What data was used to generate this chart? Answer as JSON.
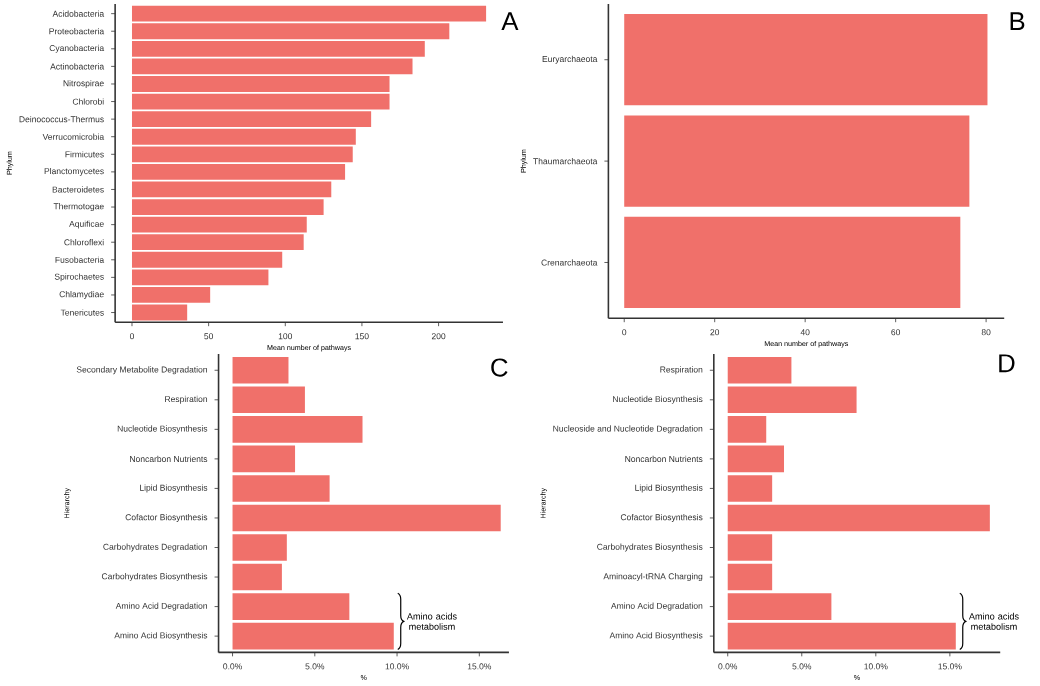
{
  "chart_data": [
    {
      "type": "bar",
      "orientation": "horizontal",
      "color": "#f0706a",
      "xlabel": "Mean number of pathways",
      "ylabel": "Phylum",
      "annotations": [
        "A"
      ],
      "categories": [
        "Acidobacteria",
        "Proteobacteria",
        "Cyanobacteria",
        "Actinobacteria",
        "Nitrospirae",
        "Chlorobi",
        "Deinococcus-Thermus",
        "Verrucomicrobia",
        "Firmicutes",
        "Planctomycetes",
        "Bacteroidetes",
        "Thermotogae",
        "Aquificae",
        "Chloroflexi",
        "Fusobacteria",
        "Spirochaetes",
        "Chlamydiae",
        "Tenericutes"
      ],
      "values": [
        231,
        207,
        191,
        183,
        168,
        168,
        156,
        146,
        144,
        139,
        130,
        125,
        114,
        112,
        98,
        89,
        51,
        36
      ],
      "xlim": [
        -11,
        242
      ],
      "xticks": [
        0,
        50,
        100,
        150,
        200
      ]
    },
    {
      "type": "bar",
      "orientation": "horizontal",
      "color": "#f0706a",
      "xlabel": "Mean number of pathways",
      "ylabel": "Phylum",
      "annotations": [
        "B"
      ],
      "categories": [
        "Euryarchaeota",
        "Thaumarchaeota",
        "Crenarchaeota"
      ],
      "values": [
        80.3,
        76.3,
        74.3
      ],
      "xlim": [
        -3.5,
        84
      ],
      "xticks": [
        0,
        20,
        40,
        60,
        80
      ]
    },
    {
      "type": "bar",
      "orientation": "horizontal",
      "color": "#f0706a",
      "xlabel": "%",
      "ylabel": "Hierarchy",
      "annotations": [
        "C",
        "Amino acids metabolism"
      ],
      "categories": [
        "Secondary Metabolite Degradation",
        "Respiration",
        "Nucleotide Biosynthesis",
        "Noncarbon Nutrients",
        "Lipid Biosynthesis",
        "Cofactor Biosynthesis",
        "Carbohydrates Degradation",
        "Carbohydrates Biosynthesis",
        "Amino Acid Degradation",
        "Amino Acid Biosynthesis"
      ],
      "values": [
        3.4,
        4.4,
        7.9,
        3.8,
        5.9,
        16.3,
        3.3,
        3.0,
        7.1,
        9.8
      ],
      "xlim": [
        -0.85,
        16.8
      ],
      "xticks": [
        {
          "value": 0,
          "label": "0.0%"
        },
        {
          "value": 5,
          "label": "5.0%"
        },
        {
          "value": 10,
          "label": "10.0%"
        },
        {
          "value": 15,
          "label": "15.0%"
        }
      ]
    },
    {
      "type": "bar",
      "orientation": "horizontal",
      "color": "#f0706a",
      "xlabel": "%",
      "ylabel": "Hierarchy",
      "annotations": [
        "D",
        "Amino acids metabolism"
      ],
      "categories": [
        "Respiration",
        "Nucleotide Biosynthesis",
        "Nucleoside and Nucleotide Degradation",
        "Noncarbon Nutrients",
        "Lipid Biosynthesis",
        "Cofactor Biosynthesis",
        "Carbohydrates Biosynthesis",
        "Aminoacyl-tRNA Charging",
        "Amino Acid Degradation",
        "Amino Acid Biosynthesis"
      ],
      "values": [
        4.3,
        8.7,
        2.6,
        3.8,
        3.0,
        17.7,
        3.0,
        3.0,
        7.0,
        15.4
      ],
      "xlim": [
        -0.94,
        18.4
      ],
      "xticks": [
        {
          "value": 0,
          "label": "0.0%"
        },
        {
          "value": 5,
          "label": "5.0%"
        },
        {
          "value": 10,
          "label": "10.0%"
        },
        {
          "value": 15,
          "label": "15.0%"
        }
      ]
    }
  ]
}
